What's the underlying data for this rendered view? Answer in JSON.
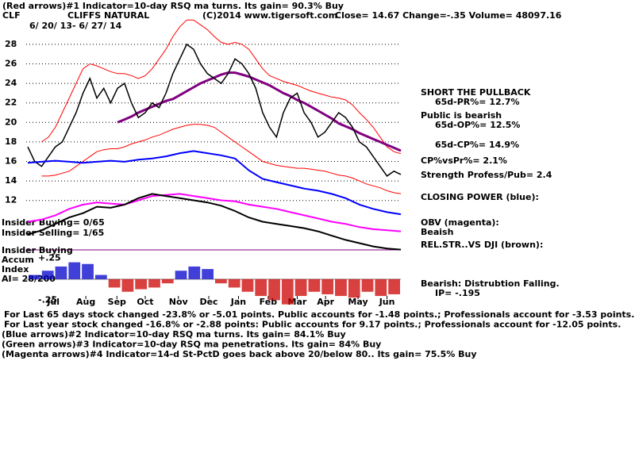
{
  "header": {
    "signal1": "(Red arrows)#1 Indicator=10-day RSQ ma turns. Its gain= 90.3% Buy",
    "ticker": "CLF",
    "name": "CLIFFS NATURAL",
    "copyright": "(C)2014 www.tigersoft.com",
    "quote": "Close=  14.67  Change=-.35 Volume= 48097.16",
    "range": "6/ 20/ 13- 6/ 27/ 14"
  },
  "side": [
    "SHORT THE PULLBACK",
    "65d-PR%= 12.7%",
    "Public is bearish",
    "65d-OP%= 12.5%",
    "65d-CP%= 14.9%",
    "CP%vsPr%=  2.1%",
    "Strength Profess/Pub= 2.4",
    "CLOSING POWER (blue):",
    "OBV (magenta):",
    "Beaish",
    "REL.STR..VS DJI (brown):",
    "Bearish: Distrubtion Falling.",
    "IP= -.195"
  ],
  "left": [
    "Insider Buying= 0/65",
    "Insider Selling= 1/65",
    "Insider Buying",
    "Accum",
    "Index",
    "AI= 28/200"
  ],
  "notes": [
    "For Last 65 days stock changed -23.8% or -5.01 points.  Public accounts for -1.48 points.;  Professionals account for -3.53 points.",
    "For Last year stock changed -16.8% or -2.88 points:  Public accounts for  9.17 points.;  Professionals account for -12.05 points.",
    "(Blue arrows)#2 Indicator=10-day RSQ ma turns. Its gain= 84.1% Buy",
    "(Green arrows)#3 Indicator=10-day RSQ ma penetrations. Its gain= 84% Buy",
    "(Magenta arrows)#4 Indicator=14-d St-PctD goes back above 20/below 80.. Its gain= 75.5% Buy"
  ],
  "chart_data": [
    {
      "type": "line",
      "xlim": [
        0,
        54
      ],
      "ylim": [
        11,
        31
      ],
      "yticks": [
        12,
        14,
        16,
        18,
        20,
        22,
        24,
        26,
        28
      ],
      "grid": true,
      "xticks": [
        {
          "value": 3.7,
          "label": "Jul"
        },
        {
          "value": 8.4,
          "label": "Aug"
        },
        {
          "value": 12.9,
          "label": "Sep"
        },
        {
          "value": 17,
          "label": "Oct"
        },
        {
          "value": 21.8,
          "label": "Nov"
        },
        {
          "value": 26.2,
          "label": "Dec"
        },
        {
          "value": 30.5,
          "label": "Jan"
        },
        {
          "value": 34.8,
          "label": "Feb"
        },
        {
          "value": 39,
          "label": "Mar"
        },
        {
          "value": 43.1,
          "label": "Apr"
        },
        {
          "value": 47.8,
          "label": "May"
        },
        {
          "value": 52,
          "label": "Jun"
        }
      ],
      "series": [
        {
          "color": "#ff0000",
          "width": 1,
          "values": [
            null,
            null,
            18,
            18.5,
            19.5,
            21,
            22.5,
            24,
            25.5,
            26,
            25.8,
            25.5,
            25.2,
            25,
            25,
            24.8,
            24.5,
            24.8,
            25.5,
            26.5,
            27.5,
            28.8,
            29.8,
            30.5,
            30.5,
            30,
            29.5,
            28.8,
            28.2,
            28,
            28.2,
            28,
            27.5,
            26.5,
            25.5,
            24.8,
            24.5,
            24.2,
            24,
            23.8,
            23.5,
            23.2,
            23,
            22.8,
            22.6,
            22.5,
            22.3,
            21.8,
            21,
            20.3,
            19.5,
            18.5,
            17.5,
            17,
            16.8
          ]
        },
        {
          "color": "#ff0000",
          "width": 1,
          "values": [
            null,
            null,
            14.5,
            14.5,
            14.6,
            14.8,
            15,
            15.5,
            16,
            16.5,
            17,
            17.2,
            17.3,
            17.3,
            17.5,
            17.8,
            18,
            18.2,
            18.5,
            18.7,
            19,
            19.3,
            19.5,
            19.7,
            19.8,
            19.8,
            19.7,
            19.5,
            19,
            18.5,
            18,
            17.5,
            17,
            16.5,
            16,
            15.8,
            15.6,
            15.5,
            15.4,
            15.3,
            15.3,
            15.2,
            15.1,
            15,
            14.8,
            14.6,
            14.5,
            14.3,
            14,
            13.7,
            13.5,
            13.3,
            13,
            12.8,
            12.7
          ]
        },
        {
          "color": "#800080",
          "width": 3,
          "values": [
            null,
            null,
            null,
            null,
            null,
            null,
            null,
            null,
            null,
            null,
            null,
            null,
            null,
            20,
            20.3,
            20.6,
            21,
            21.3,
            21.6,
            21.9,
            22.2,
            22.4,
            22.8,
            23.2,
            23.6,
            24,
            24.3,
            24.6,
            24.9,
            25.1,
            25.1,
            24.9,
            24.7,
            24.4,
            24.1,
            23.8,
            23.4,
            23,
            22.7,
            22.3,
            22,
            21.6,
            21.2,
            20.8,
            20.4,
            19.9,
            19.6,
            19.3,
            18.9,
            18.6,
            18.3,
            18,
            17.7,
            17.4,
            17.1
          ]
        },
        {
          "color": "#000000",
          "width": 1.5,
          "values": [
            17.5,
            16,
            15.5,
            16.5,
            17.5,
            18,
            19.5,
            21,
            23,
            24.5,
            22.5,
            23.5,
            22,
            23.5,
            24,
            22,
            20.5,
            21,
            22,
            21.5,
            23,
            25,
            26.5,
            28,
            27.5,
            26,
            25,
            24.5,
            24,
            25,
            26.5,
            26,
            25,
            23.5,
            21,
            19.5,
            18.5,
            21,
            22.5,
            23,
            21,
            20,
            18.5,
            19,
            20,
            21,
            20.5,
            19.5,
            18,
            17.5,
            16.5,
            15.5,
            14.5,
            15,
            14.67
          ]
        }
      ]
    },
    {
      "type": "line",
      "xlim": [
        0,
        27
      ],
      "ylim": [
        0,
        100
      ],
      "series": [
        {
          "color": "#0000ff",
          "width": 2,
          "values": [
            85,
            86,
            87,
            86,
            85,
            86,
            87,
            86,
            88,
            89,
            91,
            94,
            96,
            94,
            92,
            89,
            78,
            70,
            67,
            64,
            61,
            59,
            56,
            52,
            46,
            42,
            39,
            37
          ]
        },
        {
          "color": "#ff00ff",
          "width": 2,
          "values": [
            30,
            32,
            36,
            42,
            46,
            48,
            47,
            46,
            50,
            54,
            55,
            56,
            54,
            52,
            50,
            49,
            46,
            44,
            42,
            39,
            36,
            33,
            30,
            28,
            25,
            23,
            22,
            21
          ]
        },
        {
          "color": "#000000",
          "width": 2,
          "values": [
            18,
            22,
            28,
            34,
            38,
            44,
            43,
            46,
            52,
            56,
            54,
            52,
            50,
            48,
            45,
            40,
            34,
            30,
            28,
            26,
            24,
            21,
            17,
            13,
            10,
            7,
            5,
            4
          ]
        }
      ]
    },
    {
      "type": "bar",
      "xlim": [
        0,
        27
      ],
      "ylim": [
        -0.35,
        0.3
      ],
      "yticks": [
        {
          "value": 0.25,
          "label": "+.25"
        },
        {
          "value": -0.25,
          "label": "-.25"
        }
      ],
      "pos_color": "#0000cc",
      "neg_color": "#cc0000",
      "values": [
        0.05,
        0.1,
        0.15,
        0.2,
        0.18,
        0.05,
        -0.1,
        -0.15,
        -0.12,
        -0.1,
        -0.05,
        0.1,
        0.15,
        0.12,
        -0.05,
        -0.1,
        -0.15,
        -0.2,
        -0.25,
        -0.3,
        -0.2,
        -0.15,
        -0.18,
        -0.2,
        -0.22,
        -0.15,
        -0.2,
        -0.18
      ]
    }
  ]
}
